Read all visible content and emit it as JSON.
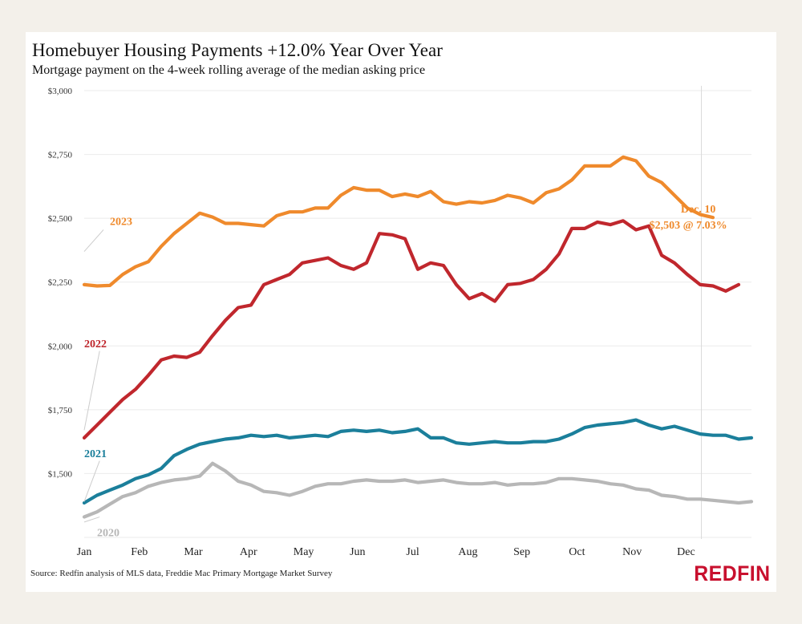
{
  "header": {
    "title": "Homebuyer Housing Payments +12.0% Year Over Year",
    "subtitle": "Mortgage payment on the 4-week rolling average of the median asking price"
  },
  "footer": {
    "source": "Source: Redfin analysis of MLS data, Freddie Mac Primary Mortgage Market Survey",
    "logo": "REDFIN"
  },
  "colors": {
    "2023": "#ef8a2c",
    "2022": "#c0272d",
    "2021": "#1b7f9b",
    "2020": "#b7b7b7",
    "grid": "#ebebeb",
    "marker": "#d9d9d9"
  },
  "chart_data": {
    "type": "line",
    "title": "Homebuyer Housing Payments +12.0% Year Over Year",
    "subtitle": "Mortgage payment on the 4-week rolling average of the median asking price",
    "x_unit": "week",
    "x_ticks": [
      {
        "label": "Jan",
        "week": 1
      },
      {
        "label": "Feb",
        "week": 5.3
      },
      {
        "label": "Mar",
        "week": 9.5
      },
      {
        "label": "Apr",
        "week": 13.8
      },
      {
        "label": "May",
        "week": 18.1
      },
      {
        "label": "Jun",
        "week": 22.3
      },
      {
        "label": "Jul",
        "week": 26.6
      },
      {
        "label": "Aug",
        "week": 30.9
      },
      {
        "label": "Sep",
        "week": 35.1
      },
      {
        "label": "Oct",
        "week": 39.4
      },
      {
        "label": "Nov",
        "week": 43.7
      },
      {
        "label": "Dec",
        "week": 47.9
      }
    ],
    "y_ticks": [
      "$3,000",
      "$2,750",
      "$2,500",
      "$2,250",
      "$2,000",
      "$1,750",
      "$1,500"
    ],
    "y_tick_values": [
      3000,
      2750,
      2500,
      2250,
      2000,
      1750,
      1500
    ],
    "ylim": [
      1250,
      3000
    ],
    "xlim": [
      1,
      53
    ],
    "grid": true,
    "vertical_marker_week": 49.1,
    "series": [
      {
        "name": "2023",
        "label_week": 3,
        "label_value": 2490,
        "leader": [
          [
            1,
            2370
          ],
          [
            2.5,
            2455
          ]
        ],
        "values": [
          2240,
          2235,
          2237,
          2280,
          2310,
          2330,
          2390,
          2440,
          2480,
          2520,
          2505,
          2480,
          2480,
          2475,
          2470,
          2510,
          2525,
          2525,
          2540,
          2540,
          2590,
          2620,
          2610,
          2610,
          2585,
          2595,
          2585,
          2605,
          2565,
          2555,
          2565,
          2560,
          2570,
          2590,
          2580,
          2560,
          2600,
          2615,
          2650,
          2705,
          2705,
          2705,
          2740,
          2725,
          2665,
          2640,
          2590,
          2540,
          2515,
          2503
        ]
      },
      {
        "name": "2022",
        "label_week": 1,
        "label_value": 2010,
        "leader": [
          [
            1,
            1670
          ],
          [
            2.2,
            1980
          ]
        ],
        "values": [
          1640,
          1690,
          1740,
          1790,
          1830,
          1885,
          1945,
          1960,
          1955,
          1975,
          2040,
          2100,
          2150,
          2160,
          2240,
          2260,
          2280,
          2325,
          2335,
          2345,
          2315,
          2300,
          2325,
          2440,
          2435,
          2420,
          2300,
          2325,
          2315,
          2240,
          2185,
          2205,
          2175,
          2240,
          2245,
          2260,
          2300,
          2360,
          2460,
          2460,
          2485,
          2475,
          2490,
          2455,
          2470,
          2355,
          2325,
          2280,
          2240,
          2235,
          2215,
          2240
        ]
      },
      {
        "name": "2021",
        "label_week": 1,
        "label_value": 1580,
        "leader": [
          [
            1,
            1390
          ],
          [
            2.2,
            1550
          ]
        ],
        "values": [
          1385,
          1415,
          1435,
          1455,
          1480,
          1495,
          1520,
          1570,
          1595,
          1615,
          1625,
          1635,
          1640,
          1650,
          1645,
          1650,
          1640,
          1645,
          1650,
          1645,
          1665,
          1670,
          1665,
          1670,
          1660,
          1665,
          1675,
          1640,
          1640,
          1620,
          1615,
          1620,
          1625,
          1620,
          1620,
          1625,
          1625,
          1635,
          1655,
          1680,
          1690,
          1695,
          1700,
          1710,
          1690,
          1675,
          1685,
          1670,
          1655,
          1650,
          1650,
          1635,
          1640
        ]
      },
      {
        "name": "2020",
        "label_week": 2,
        "label_value": 1270,
        "leader": [
          [
            1,
            1310
          ],
          [
            2.2,
            1330
          ]
        ],
        "values": [
          1330,
          1350,
          1380,
          1410,
          1425,
          1450,
          1465,
          1475,
          1480,
          1490,
          1540,
          1510,
          1470,
          1455,
          1430,
          1425,
          1415,
          1430,
          1450,
          1460,
          1460,
          1470,
          1475,
          1470,
          1470,
          1475,
          1465,
          1470,
          1475,
          1465,
          1460,
          1460,
          1465,
          1455,
          1460,
          1460,
          1465,
          1480,
          1480,
          1475,
          1470,
          1460,
          1455,
          1440,
          1435,
          1415,
          1410,
          1400,
          1400,
          1395,
          1390,
          1385,
          1390
        ]
      }
    ],
    "annotation": {
      "line1": "Dec. 10",
      "line2": "$2,503 @ 7.03%",
      "week": 49.1,
      "value": 2503
    }
  }
}
